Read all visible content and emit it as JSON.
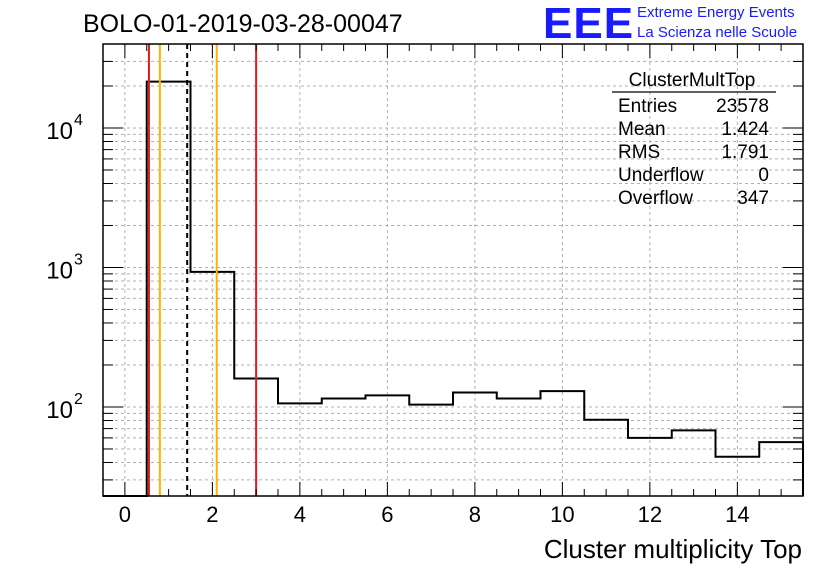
{
  "title": "BOLO-01-2019-03-28-00047",
  "logo": {
    "mark": "EEE",
    "line1": "Extreme Energy Events",
    "line2": "La Scienza nelle Scuole"
  },
  "stats": {
    "name": "ClusterMultTop",
    "rows": [
      {
        "label": "Entries",
        "value": "23578"
      },
      {
        "label": "Mean",
        "value": "1.424"
      },
      {
        "label": "RMS",
        "value": "1.791"
      },
      {
        "label": "Underflow",
        "value": "0"
      },
      {
        "label": "Overflow",
        "value": "347"
      }
    ]
  },
  "colors": {
    "hist": "#000000",
    "red": "#e31a1c",
    "orange": "#ffb300",
    "grid": "#b0b0b0",
    "logo": "#1a1aff"
  },
  "chart_data": {
    "type": "histogram",
    "xlabel": "Cluster multiplicity Top",
    "ylabel": "",
    "xlim": [
      -0.5,
      15.5
    ],
    "ylim": [
      23,
      40000
    ],
    "yscale": "log",
    "xticks": [
      0,
      2,
      4,
      6,
      8,
      10,
      12,
      14
    ],
    "ytick_labels": [
      {
        "base": "10",
        "exp": "2",
        "value": 100
      },
      {
        "base": "10",
        "exp": "3",
        "value": 1000
      },
      {
        "base": "10",
        "exp": "4",
        "value": 10000
      }
    ],
    "bins": [
      {
        "x0": -0.5,
        "x1": 0.5,
        "value": 0
      },
      {
        "x0": 0.5,
        "x1": 1.5,
        "value": 21500
      },
      {
        "x0": 1.5,
        "x1": 2.5,
        "value": 930
      },
      {
        "x0": 2.5,
        "x1": 3.5,
        "value": 160
      },
      {
        "x0": 3.5,
        "x1": 4.5,
        "value": 106
      },
      {
        "x0": 4.5,
        "x1": 5.5,
        "value": 115
      },
      {
        "x0": 5.5,
        "x1": 6.5,
        "value": 121
      },
      {
        "x0": 6.5,
        "x1": 7.5,
        "value": 104
      },
      {
        "x0": 7.5,
        "x1": 8.5,
        "value": 127
      },
      {
        "x0": 8.5,
        "x1": 9.5,
        "value": 115
      },
      {
        "x0": 9.5,
        "x1": 10.5,
        "value": 130
      },
      {
        "x0": 10.5,
        "x1": 11.5,
        "value": 81
      },
      {
        "x0": 11.5,
        "x1": 12.5,
        "value": 60
      },
      {
        "x0": 12.5,
        "x1": 13.5,
        "value": 68
      },
      {
        "x0": 13.5,
        "x1": 14.5,
        "value": 44
      },
      {
        "x0": 14.5,
        "x1": 15.5,
        "value": 56
      }
    ],
    "vlines": [
      {
        "x": 0.55,
        "color": "red",
        "style": "solid"
      },
      {
        "x": 0.8,
        "color": "orange",
        "style": "solid"
      },
      {
        "x": 1.424,
        "color": "black",
        "style": "dashed"
      },
      {
        "x": 2.1,
        "color": "orange",
        "style": "solid"
      },
      {
        "x": 3.0,
        "color": "red",
        "style": "solid"
      }
    ]
  }
}
